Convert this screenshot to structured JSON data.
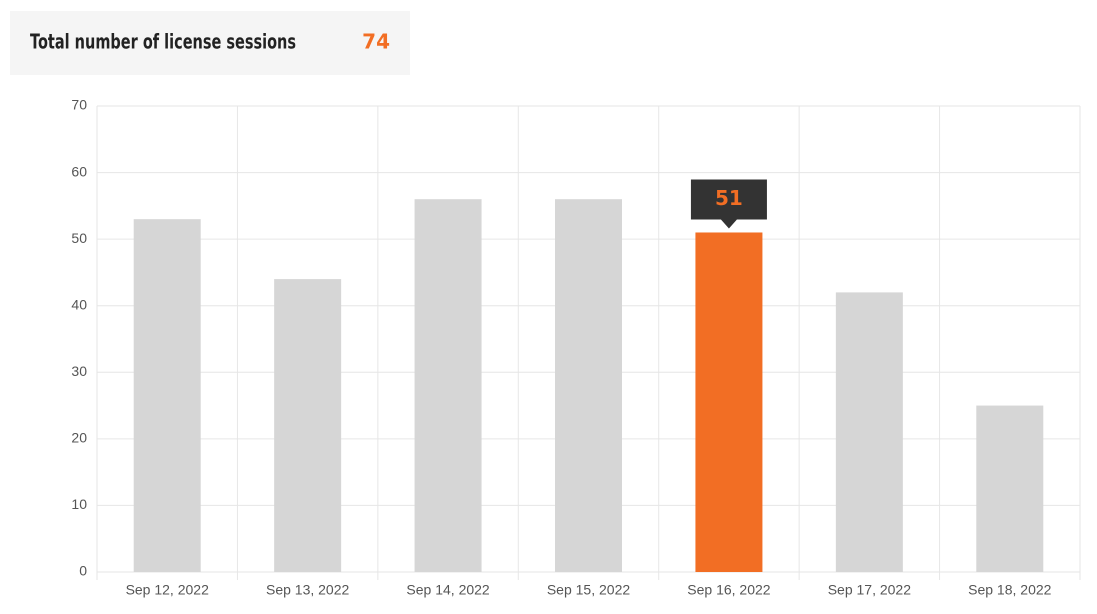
{
  "summary": {
    "label": "Total number of license sessions",
    "value": 74
  },
  "chart_data": {
    "type": "bar",
    "categories": [
      "Sep 12, 2022",
      "Sep 13, 2022",
      "Sep 14, 2022",
      "Sep 15, 2022",
      "Sep 16, 2022",
      "Sep 17, 2022",
      "Sep 18, 2022"
    ],
    "values": [
      53,
      44,
      56,
      56,
      51,
      42,
      25
    ],
    "colors": [
      "#d6d6d6",
      "#d6d6d6",
      "#d6d6d6",
      "#d6d6d6",
      "#f26e24",
      "#d6d6d6",
      "#d6d6d6"
    ],
    "tooltip_index": 4,
    "ylim": [
      0,
      70
    ],
    "yticks": [
      0,
      10,
      20,
      30,
      40,
      50,
      60,
      70
    ],
    "grid": true
  }
}
